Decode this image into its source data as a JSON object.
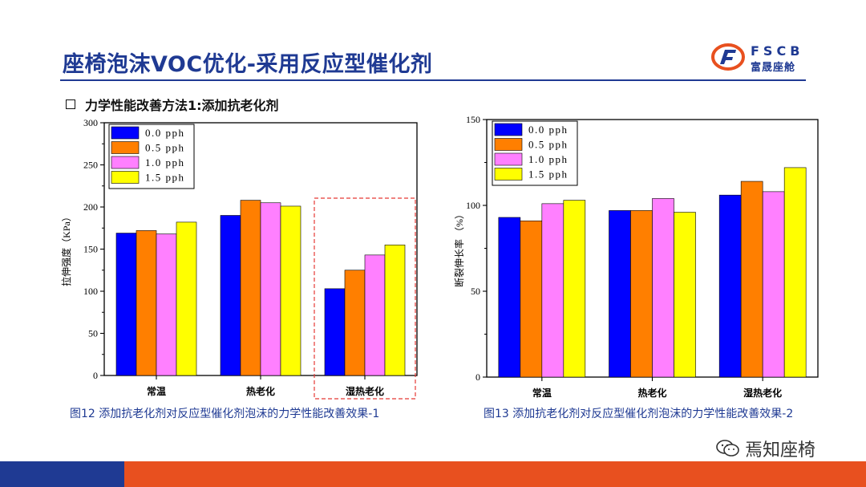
{
  "title": "座椅泡沫VOC优化-采用反应型催化剂",
  "logo": {
    "text": "FSCB",
    "subtext": "富晟座舱"
  },
  "subtitle": "力学性能改善方法1:添加抗老化剂",
  "watermark": "焉知座椅",
  "colors": {
    "accent": "#1f3a93",
    "brand_orange": "#e8501f"
  },
  "charts": [
    {
      "caption": "图12 添加抗老化剂对反应型催化剂泡沫的力学性能改善效果-1",
      "highlight": "dashed-red-box-around-湿热老化",
      "chart_data": {
        "type": "bar",
        "categories": [
          "常温",
          "热老化",
          "湿热老化"
        ],
        "ylabel": "拉伸强度（KPa）",
        "xlabel": "",
        "ylim": [
          0,
          300
        ],
        "yticks": [
          0,
          50,
          100,
          150,
          200,
          250,
          300
        ],
        "legend_position": "top-left",
        "series": [
          {
            "name": "0.0 pph",
            "color": "#0000ff",
            "values": [
              169,
              190,
              103
            ]
          },
          {
            "name": "0.5 pph",
            "color": "#ff7f00",
            "values": [
              172,
              208,
              125
            ]
          },
          {
            "name": "1.0 pph",
            "color": "#ff80ff",
            "values": [
              168,
              205,
              143
            ]
          },
          {
            "name": "1.5 pph",
            "color": "#ffff00",
            "values": [
              182,
              201,
              155
            ]
          }
        ]
      }
    },
    {
      "caption": "图13 添加抗老化剂对反应型催化剂泡沫的力学性能改善效果-2",
      "chart_data": {
        "type": "bar",
        "categories": [
          "常温",
          "热老化",
          "湿热老化"
        ],
        "ylabel": "断裂伸长率 （%）",
        "xlabel": "",
        "ylim": [
          0,
          150
        ],
        "yticks": [
          0,
          50,
          100,
          150
        ],
        "legend_position": "top-left",
        "series": [
          {
            "name": "0.0 pph",
            "color": "#0000ff",
            "values": [
              93,
              97,
              106
            ]
          },
          {
            "name": "0.5 pph",
            "color": "#ff7f00",
            "values": [
              91,
              97,
              114
            ]
          },
          {
            "name": "1.0 pph",
            "color": "#ff80ff",
            "values": [
              101,
              104,
              108
            ]
          },
          {
            "name": "1.5 pph",
            "color": "#ffff00",
            "values": [
              103,
              96,
              122
            ]
          }
        ]
      }
    }
  ]
}
